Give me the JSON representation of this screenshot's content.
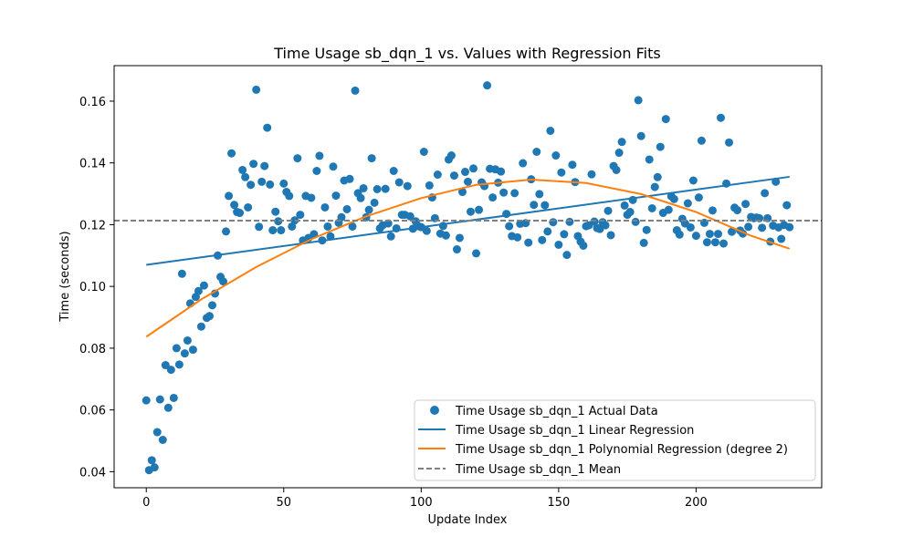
{
  "chart_data": {
    "type": "scatter",
    "title": "Time Usage sb_dqn_1 vs. Values with Regression Fits",
    "xlabel": "Update Index",
    "ylabel": "Time (seconds)",
    "xlim": [
      -11.7,
      245.7
    ],
    "ylim": [
      0.0348,
      0.1715
    ],
    "x_ticks": [
      0,
      50,
      100,
      150,
      200
    ],
    "y_ticks": [
      0.04,
      0.06,
      0.08,
      0.1,
      0.12,
      0.14,
      0.16
    ],
    "y_tick_labels": [
      "0.04",
      "0.06",
      "0.08",
      "0.10",
      "0.12",
      "0.14",
      "0.16"
    ],
    "legend_position": "lower-right",
    "colors": {
      "scatter": "#1f77b4",
      "linear": "#1f77b4",
      "poly": "#ff7f0e",
      "mean": "#808080"
    },
    "series": [
      {
        "name": "Time Usage sb_dqn_1 Actual Data",
        "kind": "scatter",
        "values": [
          [
            0,
            0.0631
          ],
          [
            1,
            0.0405
          ],
          [
            2,
            0.0437
          ],
          [
            3,
            0.0414
          ],
          [
            4,
            0.0528
          ],
          [
            5,
            0.0634
          ],
          [
            6,
            0.0503
          ],
          [
            7,
            0.0745
          ],
          [
            8,
            0.0607
          ],
          [
            9,
            0.073
          ],
          [
            10,
            0.0639
          ],
          [
            11,
            0.08
          ],
          [
            12,
            0.0747
          ],
          [
            13,
            0.1041
          ],
          [
            14,
            0.0783
          ],
          [
            15,
            0.0825
          ],
          [
            16,
            0.0945
          ],
          [
            17,
            0.0795
          ],
          [
            18,
            0.0966
          ],
          [
            19,
            0.0985
          ],
          [
            20,
            0.087
          ],
          [
            21,
            0.1003
          ],
          [
            22,
            0.0898
          ],
          [
            23,
            0.0904
          ],
          [
            24,
            0.0939
          ],
          [
            25,
            0.0977
          ],
          [
            26,
            0.11
          ],
          [
            27,
            0.1031
          ],
          [
            28,
            0.1016
          ],
          [
            29,
            0.1178
          ],
          [
            30,
            0.1293
          ],
          [
            31,
            0.1431
          ],
          [
            32,
            0.1264
          ],
          [
            33,
            0.1241
          ],
          [
            34,
            0.1238
          ],
          [
            35,
            0.1377
          ],
          [
            36,
            0.1354
          ],
          [
            37,
            0.1256
          ],
          [
            38,
            0.1329
          ],
          [
            39,
            0.1397
          ],
          [
            40,
            0.1637
          ],
          [
            41,
            0.1193
          ],
          [
            42,
            0.1339
          ],
          [
            43,
            0.139
          ],
          [
            44,
            0.1514
          ],
          [
            45,
            0.133
          ],
          [
            46,
            0.1182
          ],
          [
            47,
            0.1242
          ],
          [
            48,
            0.1211
          ],
          [
            49,
            0.1182
          ],
          [
            50,
            0.1333
          ],
          [
            51,
            0.1306
          ],
          [
            52,
            0.1293
          ],
          [
            53,
            0.1194
          ],
          [
            54,
            0.1214
          ],
          [
            55,
            0.1415
          ],
          [
            56,
            0.1232
          ],
          [
            57,
            0.1149
          ],
          [
            58,
            0.1293
          ],
          [
            59,
            0.1157
          ],
          [
            60,
            0.1287
          ],
          [
            61,
            0.1169
          ],
          [
            62,
            0.1374
          ],
          [
            63,
            0.1423
          ],
          [
            64,
            0.1149
          ],
          [
            65,
            0.1256
          ],
          [
            66,
            0.1194
          ],
          [
            67,
            0.1162
          ],
          [
            68,
            0.1388
          ],
          [
            69,
            0.1294
          ],
          [
            70,
            0.1206
          ],
          [
            71,
            0.1224
          ],
          [
            72,
            0.1343
          ],
          [
            73,
            0.125
          ],
          [
            74,
            0.1348
          ],
          [
            75,
            0.1194
          ],
          [
            76,
            0.1634
          ],
          [
            77,
            0.1302
          ],
          [
            78,
            0.1286
          ],
          [
            79,
            0.1318
          ],
          [
            80,
            0.1224
          ],
          [
            81,
            0.1248
          ],
          [
            82,
            0.1415
          ],
          [
            83,
            0.1271
          ],
          [
            84,
            0.1315
          ],
          [
            85,
            0.1188
          ],
          [
            86,
            0.1198
          ],
          [
            87,
            0.1316
          ],
          [
            88,
            0.1204
          ],
          [
            89,
            0.1162
          ],
          [
            90,
            0.1374
          ],
          [
            91,
            0.1188
          ],
          [
            92,
            0.1337
          ],
          [
            93,
            0.1232
          ],
          [
            94,
            0.1232
          ],
          [
            95,
            0.1325
          ],
          [
            96,
            0.1227
          ],
          [
            97,
            0.1187
          ],
          [
            98,
            0.1211
          ],
          [
            99,
            0.1195
          ],
          [
            100,
            0.1192
          ],
          [
            101,
            0.1436
          ],
          [
            102,
            0.118
          ],
          [
            103,
            0.1327
          ],
          [
            104,
            0.1288
          ],
          [
            105,
            0.1221
          ],
          [
            106,
            0.1362
          ],
          [
            107,
            0.1171
          ],
          [
            108,
            0.1196
          ],
          [
            109,
            0.1165
          ],
          [
            110,
            0.1411
          ],
          [
            111,
            0.1424
          ],
          [
            112,
            0.1359
          ],
          [
            113,
            0.112
          ],
          [
            114,
            0.1157
          ],
          [
            115,
            0.1306
          ],
          [
            116,
            0.1371
          ],
          [
            117,
            0.1339
          ],
          [
            118,
            0.1242
          ],
          [
            119,
            0.1382
          ],
          [
            120,
            0.1107
          ],
          [
            121,
            0.1248
          ],
          [
            122,
            0.1337
          ],
          [
            123,
            0.1325
          ],
          [
            124,
            0.1651
          ],
          [
            125,
            0.1381
          ],
          [
            126,
            0.1288
          ],
          [
            127,
            0.1379
          ],
          [
            128,
            0.1336
          ],
          [
            129,
            0.1372
          ],
          [
            130,
            0.1304
          ],
          [
            131,
            0.1235
          ],
          [
            132,
            0.1195
          ],
          [
            133,
            0.1163
          ],
          [
            134,
            0.1302
          ],
          [
            135,
            0.1159
          ],
          [
            136,
            0.1203
          ],
          [
            137,
            0.1399
          ],
          [
            138,
            0.1205
          ],
          [
            139,
            0.1142
          ],
          [
            140,
            0.1347
          ],
          [
            141,
            0.1264
          ],
          [
            142,
            0.1436
          ],
          [
            143,
            0.1299
          ],
          [
            144,
            0.115
          ],
          [
            145,
            0.1263
          ],
          [
            146,
            0.1178
          ],
          [
            147,
            0.1504
          ],
          [
            148,
            0.1208
          ],
          [
            149,
            0.1424
          ],
          [
            150,
            0.1135
          ],
          [
            151,
            0.1369
          ],
          [
            152,
            0.1169
          ],
          [
            153,
            0.1102
          ],
          [
            154,
            0.1209
          ],
          [
            155,
            0.1394
          ],
          [
            156,
            0.1338
          ],
          [
            157,
            0.1163
          ],
          [
            158,
            0.1145
          ],
          [
            159,
            0.1132
          ],
          [
            160,
            0.1195
          ],
          [
            161,
            0.1198
          ],
          [
            162,
            0.1363
          ],
          [
            163,
            0.121
          ],
          [
            164,
            0.1189
          ],
          [
            165,
            0.1186
          ],
          [
            166,
            0.1208
          ],
          [
            167,
            0.1198
          ],
          [
            168,
            0.1245
          ],
          [
            169,
            0.1166
          ],
          [
            170,
            0.139
          ],
          [
            171,
            0.1377
          ],
          [
            172,
            0.1433
          ],
          [
            173,
            0.1468
          ],
          [
            174,
            0.1262
          ],
          [
            175,
            0.1232
          ],
          [
            176,
            0.1241
          ],
          [
            177,
            0.128
          ],
          [
            178,
            0.1209
          ],
          [
            179,
            0.1603
          ],
          [
            180,
            0.1487
          ],
          [
            181,
            0.1141
          ],
          [
            182,
            0.1183
          ],
          [
            183,
            0.1411
          ],
          [
            184,
            0.1253
          ],
          [
            185,
            0.1322
          ],
          [
            186,
            0.1354
          ],
          [
            187,
            0.1452
          ],
          [
            188,
            0.1238
          ],
          [
            189,
            0.1542
          ],
          [
            190,
            0.1248
          ],
          [
            191,
            0.1292
          ],
          [
            192,
            0.1283
          ],
          [
            193,
            0.1182
          ],
          [
            194,
            0.1168
          ],
          [
            195,
            0.1219
          ],
          [
            196,
            0.1204
          ],
          [
            197,
            0.1269
          ],
          [
            198,
            0.1191
          ],
          [
            199,
            0.1343
          ],
          [
            200,
            0.1164
          ],
          [
            201,
            0.1288
          ],
          [
            202,
            0.1472
          ],
          [
            203,
            0.1206
          ],
          [
            204,
            0.1143
          ],
          [
            205,
            0.117
          ],
          [
            206,
            0.1246
          ],
          [
            207,
            0.1143
          ],
          [
            208,
            0.117
          ],
          [
            209,
            0.1546
          ],
          [
            210,
            0.1139
          ],
          [
            211,
            0.1333
          ],
          [
            212,
            0.1466
          ],
          [
            213,
            0.1177
          ],
          [
            214,
            0.1255
          ],
          [
            215,
            0.1247
          ],
          [
            216,
            0.1181
          ],
          [
            217,
            0.1171
          ],
          [
            218,
            0.1267
          ],
          [
            219,
            0.1193
          ],
          [
            220,
            0.1225
          ],
          [
            221,
            0.1221
          ],
          [
            222,
            0.1223
          ],
          [
            223,
            0.1221
          ],
          [
            224,
            0.119
          ],
          [
            225,
            0.1302
          ],
          [
            226,
            0.1221
          ],
          [
            227,
            0.1145
          ],
          [
            228,
            0.1197
          ],
          [
            229,
            0.1339
          ],
          [
            230,
            0.1191
          ],
          [
            231,
            0.1154
          ],
          [
            232,
            0.1199
          ],
          [
            233,
            0.1263
          ],
          [
            234,
            0.1192
          ]
        ]
      },
      {
        "name": "Time Usage sb_dqn_1 Linear Regression",
        "kind": "line",
        "x": [
          0,
          234
        ],
        "y": [
          0.107,
          0.1355
        ]
      },
      {
        "name": "Time Usage sb_dqn_1 Polynomial Regression (degree 2)",
        "kind": "curve",
        "x": [
          0,
          20,
          40,
          60,
          80,
          100,
          120,
          140,
          160,
          180,
          200,
          220,
          234
        ],
        "y": [
          0.0837,
          0.0958,
          0.1063,
          0.1153,
          0.1227,
          0.1286,
          0.1329,
          0.1346,
          0.1335,
          0.1299,
          0.1241,
          0.1164,
          0.1122
        ]
      },
      {
        "name": "Time Usage sb_dqn_1 Mean",
        "kind": "hline",
        "y": 0.1213
      }
    ]
  }
}
